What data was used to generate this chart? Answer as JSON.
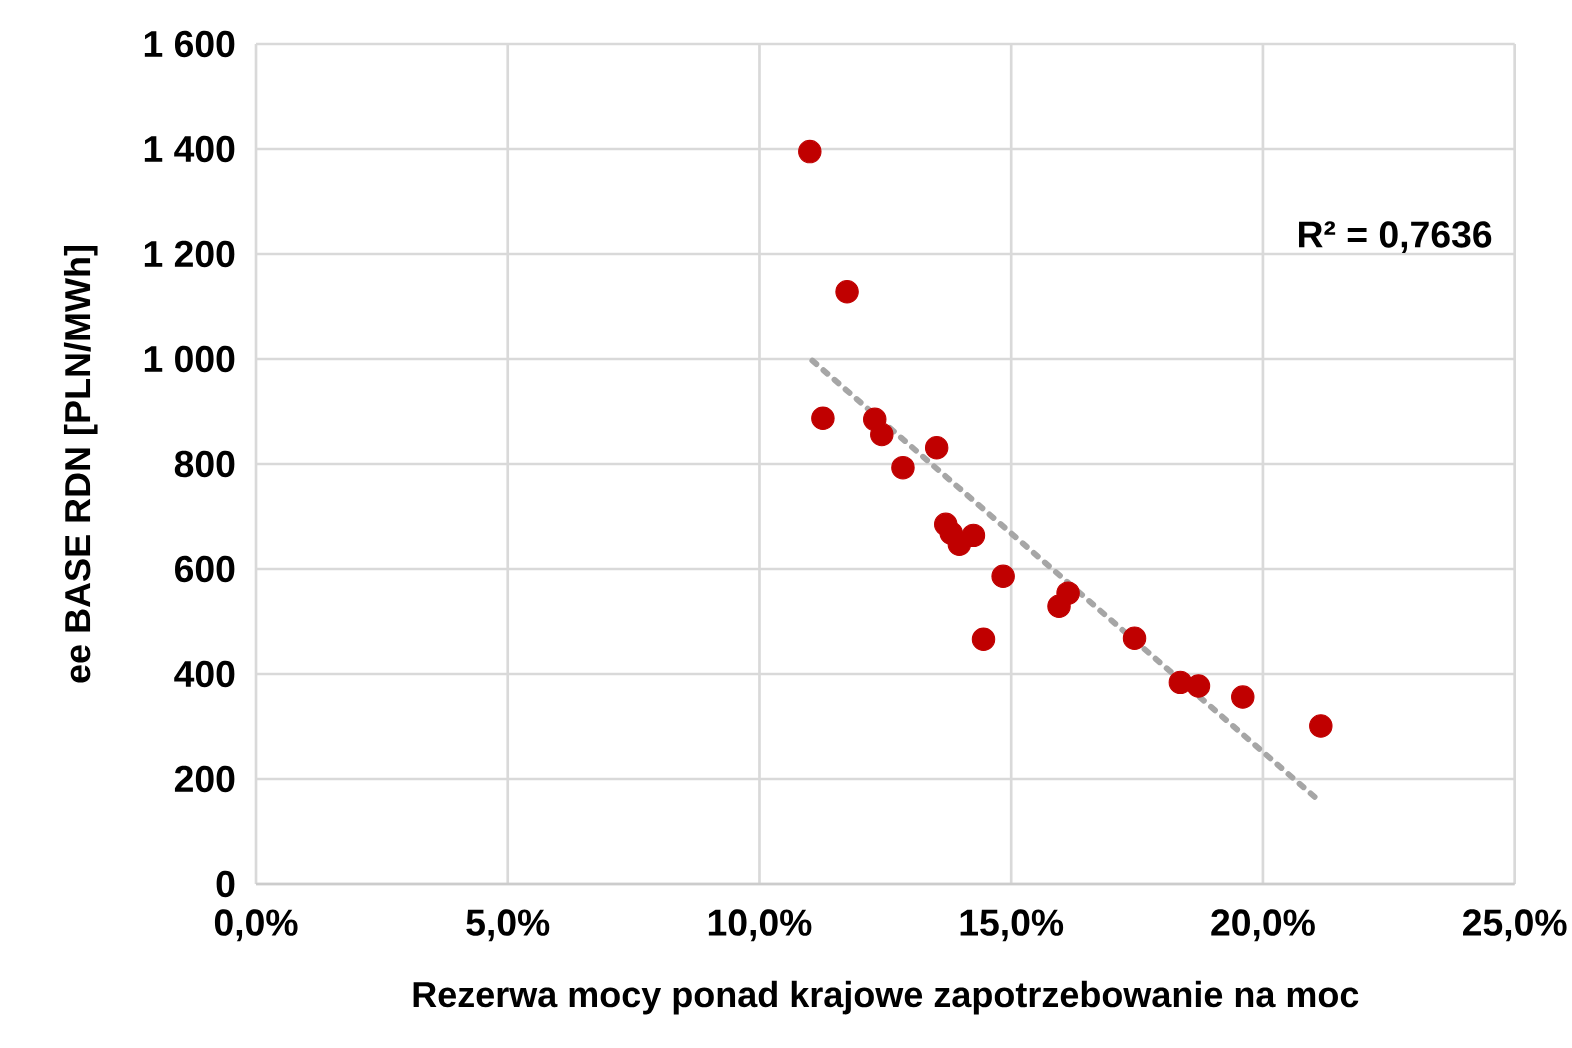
{
  "chart_data": {
    "type": "scatter",
    "xlabel": "Rezerwa mocy ponad krajowe zapotrzebowanie na moc",
    "ylabel": "ee BASE RDN [PLN/MWh]",
    "annotations": [
      "R² = 0,7636"
    ],
    "xlim": [
      0,
      25
    ],
    "xticks": [
      {
        "value": 0,
        "label": "0,0%"
      },
      {
        "value": 5,
        "label": "5,0%"
      },
      {
        "value": 10,
        "label": "10,0%"
      },
      {
        "value": 15,
        "label": "15,0%"
      },
      {
        "value": 20,
        "label": "20,0%"
      },
      {
        "value": 25,
        "label": "25,0%"
      }
    ],
    "ylim": [
      0,
      1600
    ],
    "yticks": [
      0,
      200,
      400,
      600,
      800,
      {
        "value": 1000,
        "label": "1 000"
      },
      {
        "value": 1200,
        "label": "1 200"
      },
      {
        "value": 1400,
        "label": "1 400"
      },
      {
        "value": 1600,
        "label": "1 600"
      }
    ],
    "grid": true,
    "series": [
      {
        "color": "#c00000",
        "marker": "circle",
        "x": [
          11.0,
          11.74,
          11.26,
          12.29,
          12.43,
          12.85,
          13.52,
          13.7,
          13.81,
          13.97,
          14.25,
          14.84,
          14.45,
          15.95,
          16.13,
          17.45,
          18.36,
          18.72,
          19.6,
          21.15
        ],
        "values": [
          1395,
          1128,
          887,
          885,
          856,
          793,
          831,
          685,
          668,
          647,
          664,
          586,
          466,
          529,
          554,
          468,
          384,
          377,
          356,
          301
        ]
      },
      {
        "type": "line",
        "color": "#a6a6a6",
        "marker": "none",
        "line_style": "dotted",
        "x": [
          11.05,
          21.05
        ],
        "values": [
          997,
          164
        ]
      }
    ]
  }
}
